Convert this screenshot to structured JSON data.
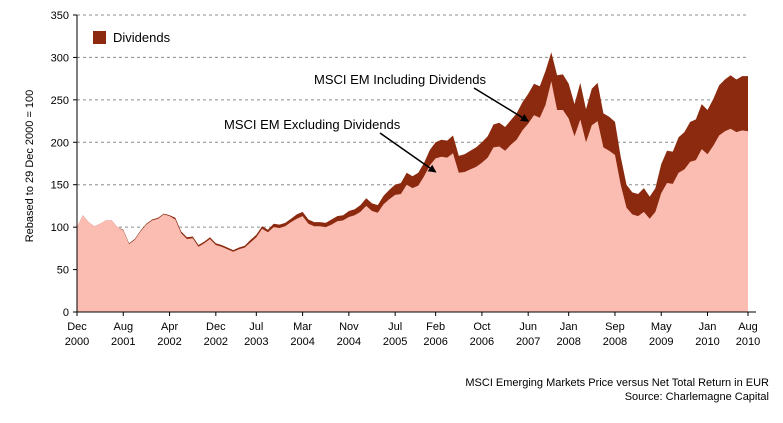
{
  "chart_data": {
    "type": "area",
    "ylabel": "Rebased to 29 Dec 2000 = 100",
    "ylim": [
      0,
      350
    ],
    "yticks": [
      0,
      50,
      100,
      150,
      200,
      250,
      300,
      350
    ],
    "grid": "horizontal dashed",
    "legend": {
      "placement": "top-left",
      "label": "Dividends",
      "color": "#8B2A0E"
    },
    "colors": {
      "excluding_fill": "#FBBDB2",
      "dividends_fill": "#8B2A0E"
    },
    "x_ticks": [
      {
        "m": 0,
        "line1": "Dec",
        "line2": "2000"
      },
      {
        "m": 8,
        "line1": "Aug",
        "line2": "2001"
      },
      {
        "m": 16,
        "line1": "Apr",
        "line2": "2002"
      },
      {
        "m": 24,
        "line1": "Dec",
        "line2": "2002"
      },
      {
        "m": 31,
        "line1": "Jul",
        "line2": "2003"
      },
      {
        "m": 39,
        "line1": "Mar",
        "line2": "2004"
      },
      {
        "m": 47,
        "line1": "Nov",
        "line2": "2004"
      },
      {
        "m": 55,
        "line1": "Jul",
        "line2": "2005"
      },
      {
        "m": 62,
        "line1": "Feb",
        "line2": "2006"
      },
      {
        "m": 70,
        "line1": "Oct",
        "line2": "2006"
      },
      {
        "m": 78,
        "line1": "Jun",
        "line2": "2007"
      },
      {
        "m": 85,
        "line1": "Jan",
        "line2": "2008"
      },
      {
        "m": 93,
        "line1": "Sep",
        "line2": "2008"
      },
      {
        "m": 101,
        "line1": "May",
        "line2": "2009"
      },
      {
        "m": 109,
        "line1": "Jan",
        "line2": "2010"
      },
      {
        "m": 116,
        "line1": "Aug",
        "line2": "2010"
      }
    ],
    "x_domain_months": [
      0,
      116
    ],
    "series": [
      {
        "name": "MSCI EM Excluding Dividends",
        "points": [
          [
            0,
            100
          ],
          [
            1,
            114
          ],
          [
            2,
            106
          ],
          [
            3,
            101
          ],
          [
            4,
            104
          ],
          [
            5,
            108
          ],
          [
            6,
            108
          ],
          [
            7,
            100
          ],
          [
            8,
            96
          ],
          [
            9,
            80
          ],
          [
            10,
            85
          ],
          [
            11,
            95
          ],
          [
            12,
            103
          ],
          [
            13,
            108
          ],
          [
            14,
            110
          ],
          [
            15,
            115
          ],
          [
            16,
            113
          ],
          [
            17,
            109
          ],
          [
            18,
            93
          ],
          [
            19,
            86
          ],
          [
            20,
            87
          ],
          [
            21,
            77
          ],
          [
            22,
            81
          ],
          [
            23,
            86
          ],
          [
            24,
            79
          ],
          [
            25,
            77
          ],
          [
            26,
            74
          ],
          [
            27,
            71
          ],
          [
            28,
            74
          ],
          [
            29,
            76
          ],
          [
            30,
            82
          ],
          [
            31,
            88
          ],
          [
            32,
            98
          ],
          [
            33,
            94
          ],
          [
            34,
            100
          ],
          [
            35,
            99
          ],
          [
            36,
            101
          ],
          [
            37,
            106
          ],
          [
            38,
            110
          ],
          [
            39,
            113
          ],
          [
            40,
            104
          ],
          [
            41,
            101
          ],
          [
            42,
            101
          ],
          [
            43,
            100
          ],
          [
            44,
            103
          ],
          [
            45,
            107
          ],
          [
            46,
            108
          ],
          [
            47,
            112
          ],
          [
            48,
            114
          ],
          [
            49,
            118
          ],
          [
            50,
            125
          ],
          [
            51,
            119
          ],
          [
            52,
            117
          ],
          [
            53,
            127
          ],
          [
            54,
            133
          ],
          [
            55,
            138
          ],
          [
            56,
            139
          ],
          [
            57,
            150
          ],
          [
            58,
            146
          ],
          [
            59,
            149
          ],
          [
            60,
            160
          ],
          [
            61,
            173
          ],
          [
            62,
            181
          ],
          [
            63,
            183
          ],
          [
            64,
            182
          ],
          [
            65,
            187
          ],
          [
            66,
            164
          ],
          [
            67,
            165
          ],
          [
            68,
            168
          ],
          [
            69,
            171
          ],
          [
            70,
            176
          ],
          [
            71,
            182
          ],
          [
            72,
            194
          ],
          [
            73,
            195
          ],
          [
            74,
            190
          ],
          [
            75,
            197
          ],
          [
            76,
            203
          ],
          [
            77,
            214
          ],
          [
            78,
            222
          ],
          [
            79,
            232
          ],
          [
            80,
            229
          ],
          [
            81,
            244
          ],
          [
            82,
            272
          ],
          [
            83,
            238
          ],
          [
            84,
            238
          ],
          [
            85,
            228
          ],
          [
            86,
            207
          ],
          [
            87,
            227
          ],
          [
            88,
            200
          ],
          [
            89,
            220
          ],
          [
            90,
            225
          ],
          [
            91,
            194
          ],
          [
            92,
            190
          ],
          [
            93,
            185
          ],
          [
            94,
            150
          ],
          [
            95,
            123
          ],
          [
            96,
            115
          ],
          [
            97,
            113
          ],
          [
            98,
            118
          ],
          [
            99,
            110
          ],
          [
            100,
            118
          ],
          [
            101,
            140
          ],
          [
            102,
            152
          ],
          [
            103,
            151
          ],
          [
            104,
            164
          ],
          [
            105,
            168
          ],
          [
            106,
            177
          ],
          [
            107,
            179
          ],
          [
            108,
            192
          ],
          [
            109,
            186
          ],
          [
            110,
            196
          ],
          [
            111,
            208
          ],
          [
            112,
            213
          ],
          [
            113,
            216
          ],
          [
            114,
            212
          ],
          [
            115,
            214
          ],
          [
            116,
            213
          ]
        ]
      },
      {
        "name": "MSCI EM Including Dividends",
        "points": [
          [
            0,
            100
          ],
          [
            1,
            114
          ],
          [
            2,
            106
          ],
          [
            3,
            101
          ],
          [
            4,
            104
          ],
          [
            5,
            108
          ],
          [
            6,
            108
          ],
          [
            7,
            100
          ],
          [
            8,
            97
          ],
          [
            9,
            81
          ],
          [
            10,
            86
          ],
          [
            11,
            96
          ],
          [
            12,
            104
          ],
          [
            13,
            109
          ],
          [
            14,
            111
          ],
          [
            15,
            116
          ],
          [
            16,
            114
          ],
          [
            17,
            111
          ],
          [
            18,
            95
          ],
          [
            19,
            88
          ],
          [
            20,
            89
          ],
          [
            21,
            79
          ],
          [
            22,
            83
          ],
          [
            23,
            88
          ],
          [
            24,
            81
          ],
          [
            25,
            79
          ],
          [
            26,
            76
          ],
          [
            27,
            73
          ],
          [
            28,
            76
          ],
          [
            29,
            78
          ],
          [
            30,
            85
          ],
          [
            31,
            91
          ],
          [
            32,
            101
          ],
          [
            33,
            97
          ],
          [
            34,
            104
          ],
          [
            35,
            103
          ],
          [
            36,
            105
          ],
          [
            37,
            110
          ],
          [
            38,
            115
          ],
          [
            39,
            118
          ],
          [
            40,
            109
          ],
          [
            41,
            106
          ],
          [
            42,
            106
          ],
          [
            43,
            105
          ],
          [
            44,
            109
          ],
          [
            45,
            113
          ],
          [
            46,
            114
          ],
          [
            47,
            119
          ],
          [
            48,
            121
          ],
          [
            49,
            126
          ],
          [
            50,
            134
          ],
          [
            51,
            128
          ],
          [
            52,
            126
          ],
          [
            53,
            137
          ],
          [
            54,
            144
          ],
          [
            55,
            150
          ],
          [
            56,
            152
          ],
          [
            57,
            164
          ],
          [
            58,
            160
          ],
          [
            59,
            164
          ],
          [
            60,
            176
          ],
          [
            61,
            191
          ],
          [
            62,
            200
          ],
          [
            63,
            203
          ],
          [
            64,
            202
          ],
          [
            65,
            208
          ],
          [
            66,
            184
          ],
          [
            67,
            186
          ],
          [
            68,
            190
          ],
          [
            69,
            194
          ],
          [
            70,
            200
          ],
          [
            71,
            207
          ],
          [
            72,
            221
          ],
          [
            73,
            223
          ],
          [
            74,
            218
          ],
          [
            75,
            226
          ],
          [
            76,
            234
          ],
          [
            77,
            247
          ],
          [
            78,
            257
          ],
          [
            79,
            269
          ],
          [
            80,
            266
          ],
          [
            81,
            284
          ],
          [
            82,
            306
          ],
          [
            83,
            279
          ],
          [
            84,
            280
          ],
          [
            85,
            269
          ],
          [
            86,
            245
          ],
          [
            87,
            270
          ],
          [
            88,
            239
          ],
          [
            89,
            263
          ],
          [
            90,
            270
          ],
          [
            91,
            234
          ],
          [
            92,
            230
          ],
          [
            93,
            224
          ],
          [
            94,
            183
          ],
          [
            95,
            150
          ],
          [
            96,
            141
          ],
          [
            97,
            139
          ],
          [
            98,
            146
          ],
          [
            99,
            136
          ],
          [
            100,
            146
          ],
          [
            101,
            174
          ],
          [
            102,
            190
          ],
          [
            103,
            189
          ],
          [
            104,
            206
          ],
          [
            105,
            212
          ],
          [
            106,
            224
          ],
          [
            107,
            227
          ],
          [
            108,
            245
          ],
          [
            109,
            238
          ],
          [
            110,
            251
          ],
          [
            111,
            267
          ],
          [
            112,
            274
          ],
          [
            113,
            279
          ],
          [
            114,
            274
          ],
          [
            115,
            278
          ],
          [
            116,
            278
          ]
        ]
      }
    ],
    "annotations": [
      {
        "text": "MSCI EM Including Dividends",
        "target_m": 78,
        "target_y": 225
      },
      {
        "text": "MSCI EM Excluding Dividends",
        "target_m": 62,
        "target_y": 165
      }
    ]
  },
  "footer": {
    "line1": "MSCI Emerging Markets Price versus Net Total Return in EUR",
    "line2": "Source: Charlemagne Capital"
  }
}
